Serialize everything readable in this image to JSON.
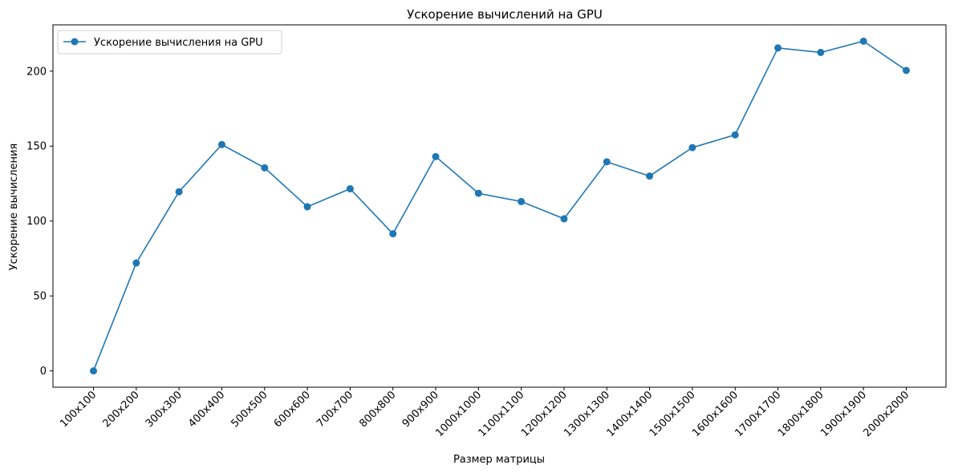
{
  "chart_data": {
    "type": "line",
    "title": "Ускорение вычислений на GPU",
    "xlabel": "Размер матрицы",
    "ylabel": "Ускорение вычисления",
    "categories": [
      "100x100",
      "200x200",
      "300x300",
      "400x400",
      "500x500",
      "600x600",
      "700x700",
      "800x800",
      "900x900",
      "1000x1000",
      "1100x1100",
      "1200x1200",
      "1300x1300",
      "1400x1400",
      "1500x1500",
      "1600x1600",
      "1700x1700",
      "1800x1800",
      "1900x1900",
      "2000x2000"
    ],
    "series": [
      {
        "name": "Ускорение вычисления на GPU",
        "color": "#1f77b4",
        "marker": "circle",
        "values": [
          0,
          72,
          119.5,
          151,
          135.5,
          109.5,
          121.5,
          91.5,
          143,
          118.5,
          113,
          101.5,
          139.5,
          130,
          149,
          157.5,
          215.5,
          212.5,
          220,
          200.5
        ]
      }
    ],
    "ylim": [
      -10.9,
      230.9
    ],
    "yticks": [
      0,
      50,
      100,
      150,
      200
    ],
    "grid": false,
    "legend_position": "upper-left"
  }
}
